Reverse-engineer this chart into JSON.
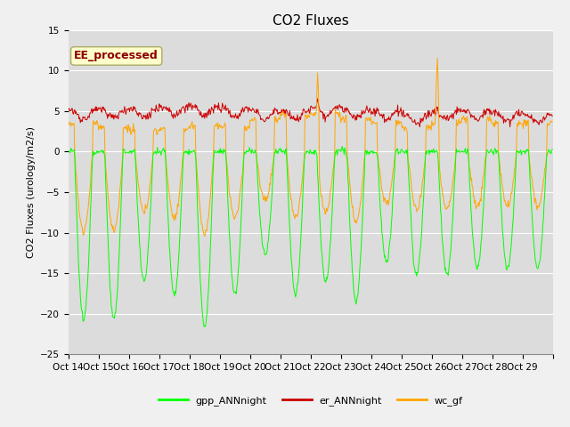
{
  "title": "CO2 Fluxes",
  "ylabel": "CO2 Fluxes (urology/m2/s)",
  "ylim": [
    -25,
    15
  ],
  "yticks": [
    -25,
    -20,
    -15,
    -10,
    -5,
    0,
    5,
    10,
    15
  ],
  "xtick_labels": [
    "Oct 14",
    "Oct 15",
    "Oct 16",
    "Oct 17",
    "Oct 18",
    "Oct 19",
    "Oct 20",
    "Oct 21",
    "Oct 22",
    "Oct 23",
    "Oct 24",
    "Oct 25",
    "Oct 26",
    "Oct 27",
    "Oct 28",
    "Oct 29",
    ""
  ],
  "color_gpp": "#00FF00",
  "color_er": "#CC0000",
  "color_wc": "#FFA500",
  "annotation_text": "EE_processed",
  "annotation_color": "#8B0000",
  "annotation_bg": "#FFFFCC",
  "plot_bg_color": "#DCDCDC",
  "fig_bg_color": "#F0F0F0",
  "legend_labels": [
    "gpp_ANNnight",
    "er_ANNnight",
    "wc_gf"
  ],
  "title_fontsize": 11,
  "label_fontsize": 8,
  "tick_fontsize": 7.5
}
